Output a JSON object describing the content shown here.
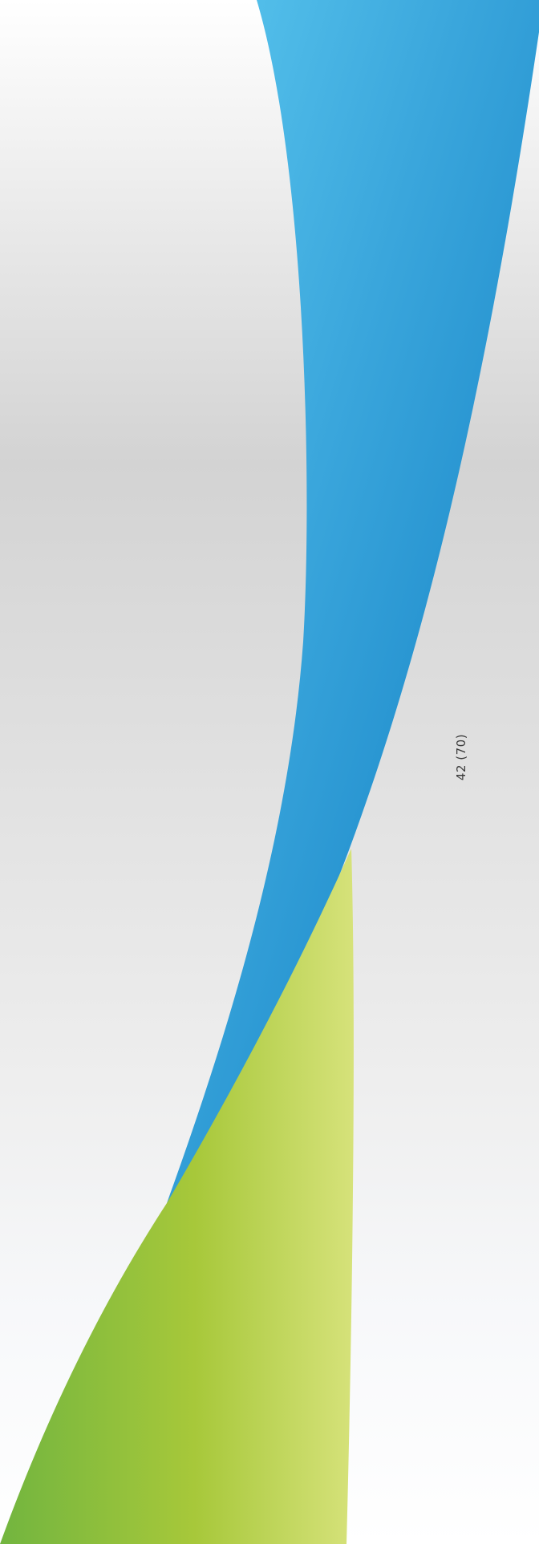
{
  "page": {
    "number_label": "42 (70)"
  },
  "colors": {
    "blue_light": "#5cc8ef",
    "blue_dark": "#0a78bf",
    "green_dark": "#72b53f",
    "green_mid": "#a7c83a",
    "green_light": "#d6e27a",
    "background_top": "#ffffff",
    "background_mid": "#d3d3d3"
  },
  "icons": {
    "decoration": "wave-ribbon-shape"
  }
}
